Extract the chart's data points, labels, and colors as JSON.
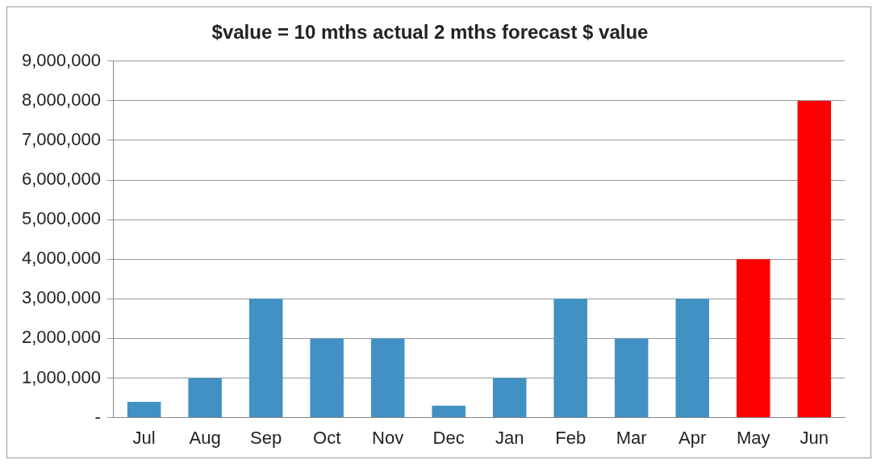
{
  "chart_data": {
    "type": "bar",
    "title": "$value = 10 mths actual 2 mths forecast $ value",
    "categories": [
      "Jul",
      "Aug",
      "Sep",
      "Oct",
      "Nov",
      "Dec",
      "Jan",
      "Feb",
      "Mar",
      "Apr",
      "May",
      "Jun"
    ],
    "values": [
      400000,
      1000000,
      3000000,
      2000000,
      2000000,
      300000,
      1000000,
      3000000,
      2000000,
      3000000,
      4000000,
      8000000
    ],
    "colors": [
      "#4291c4",
      "#4291c4",
      "#4291c4",
      "#4291c4",
      "#4291c4",
      "#4291c4",
      "#4291c4",
      "#4291c4",
      "#4291c4",
      "#4291c4",
      "#ff0000",
      "#ff0000"
    ],
    "ylim": [
      0,
      9000000
    ],
    "yticks": [
      {
        "value": 0,
        "label": "-"
      },
      {
        "value": 1000000,
        "label": "1,000,000"
      },
      {
        "value": 2000000,
        "label": "2,000,000"
      },
      {
        "value": 3000000,
        "label": "3,000,000"
      },
      {
        "value": 4000000,
        "label": "4,000,000"
      },
      {
        "value": 5000000,
        "label": "5,000,000"
      },
      {
        "value": 6000000,
        "label": "6,000,000"
      },
      {
        "value": 7000000,
        "label": "7,000,000"
      },
      {
        "value": 8000000,
        "label": "8,000,000"
      },
      {
        "value": 9000000,
        "label": "9,000,000"
      }
    ],
    "grid": "y",
    "legend": false
  }
}
